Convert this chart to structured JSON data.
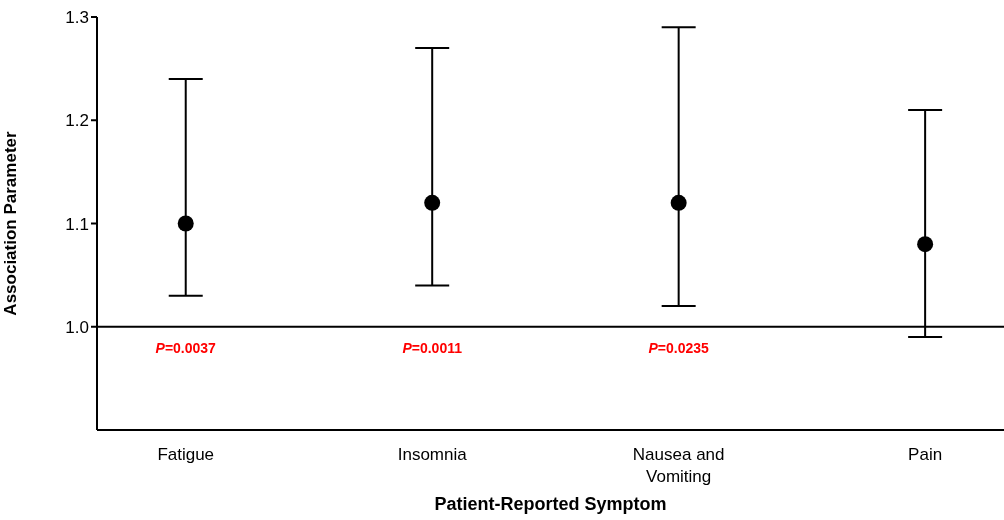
{
  "chart_data": {
    "type": "scatter",
    "xlabel": "Patient-Reported Symptom",
    "ylabel": "Association Parameter",
    "categories": [
      "Fatigue",
      "Insomnia",
      "Nausea and Vomiting",
      "Pain"
    ],
    "values": [
      1.1,
      1.12,
      1.12,
      1.08
    ],
    "errors": [
      [
        1.03,
        1.24
      ],
      [
        1.04,
        1.27
      ],
      [
        1.02,
        1.29
      ],
      [
        0.99,
        1.21
      ]
    ],
    "color": "#000000",
    "marker": "circle",
    "grid": false,
    "legend": false,
    "ylim": [
      0.9,
      1.3
    ],
    "yticks": [
      {
        "value": 1.0,
        "label": "1.0"
      },
      {
        "value": 1.1,
        "label": "1.1"
      },
      {
        "value": 1.2,
        "label": "1.2"
      },
      {
        "value": 1.3,
        "label": "1.3"
      }
    ],
    "ref_lines": [
      {
        "axis": "y",
        "value": 1.0,
        "color": "#000000"
      }
    ],
    "annotations": [
      "P=0.0037",
      "P=0.0011",
      "P=0.0235"
    ]
  }
}
